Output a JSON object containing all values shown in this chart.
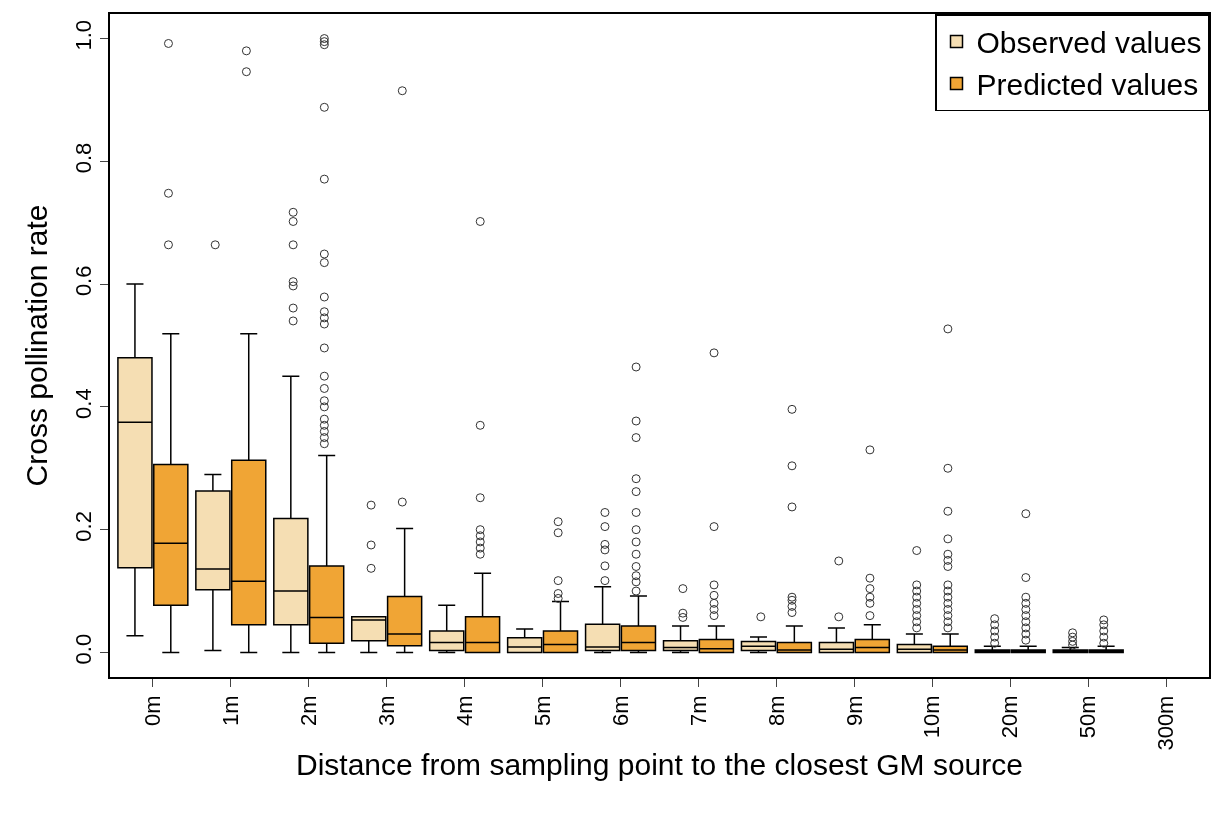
{
  "chart_data": {
    "type": "box",
    "xlabel": "Distance from sampling point to the closest GM source",
    "ylabel": "Cross pollination rate",
    "categories": [
      "0m",
      "1m",
      "2m",
      "3m",
      "4m",
      "5m",
      "6m",
      "7m",
      "8m",
      "9m",
      "10m",
      "20m",
      "50m",
      "300m"
    ],
    "ylim": [
      -0.04,
      1.04
    ],
    "yticks": [
      {
        "value": 0,
        "label": "0.0"
      },
      0.2,
      0.4,
      0.6,
      0.8,
      {
        "value": 1,
        "label": "1.0"
      }
    ],
    "legend": "top right",
    "series": [
      {
        "name": "Observed values",
        "color": "#f5deb3",
        "boxes": [
          {
            "low": 0.027,
            "q1": 0.138,
            "median": 0.375,
            "q3": 0.48,
            "high": 0.6
          },
          {
            "low": 0.003,
            "q1": 0.102,
            "median": 0.136,
            "q3": 0.263,
            "high": 0.29,
            "outliers": [
              0.664
            ]
          },
          {
            "low": 0,
            "q1": 0.045,
            "median": 0.1,
            "q3": 0.218,
            "high": 0.45,
            "outliers": [
              0.717,
              0.702,
              0.664,
              0.604,
              0.597,
              0.561,
              0.54
            ]
          },
          {
            "low": 0,
            "q1": 0.019,
            "median": 0.053,
            "q3": 0.058,
            "high": 0.058,
            "outliers": [
              0.24,
              0.175,
              0.137
            ]
          },
          {
            "low": 0,
            "q1": 0.003,
            "median": 0.016,
            "q3": 0.035,
            "high": 0.077
          },
          {
            "low": 0,
            "q1": 0,
            "median": 0.009,
            "q3": 0.024,
            "high": 0.038
          },
          {
            "low": 0,
            "q1": 0.003,
            "median": 0.009,
            "q3": 0.046,
            "high": 0.107,
            "outliers": [
              0.228,
              0.205,
              0.176,
              0.167,
              0.141,
              0.117
            ]
          },
          {
            "low": 0,
            "q1": 0.003,
            "median": 0.008,
            "q3": 0.019,
            "high": 0.043,
            "outliers": [
              0.104,
              0.064,
              0.057
            ]
          },
          {
            "low": 0,
            "q1": 0.003,
            "median": 0.01,
            "q3": 0.018,
            "high": 0.025,
            "outliers": [
              0.058
            ]
          },
          {
            "low": 0,
            "q1": 0,
            "median": 0.005,
            "q3": 0.016,
            "high": 0.04,
            "outliers": [
              0.149,
              0.058
            ]
          },
          {
            "low": 0,
            "q1": 0,
            "median": 0.005,
            "q3": 0.013,
            "high": 0.03,
            "outliers": [
              0.166,
              0.11,
              0.1,
              0.09,
              0.08,
              0.07,
              0.06,
              0.05,
              0.04
            ]
          },
          {
            "low": 0,
            "q1": 0,
            "median": 0.002,
            "q3": 0.004,
            "high": 0.01,
            "outliers": [
              0.055,
              0.045,
              0.035,
              0.025,
              0.015
            ]
          },
          {
            "low": 0,
            "q1": 0,
            "median": 0.002,
            "q3": 0.004,
            "high": 0.008,
            "outliers": [
              0.032,
              0.025,
              0.018,
              0.012
            ]
          },
          null
        ]
      },
      {
        "name": "Predicted values",
        "color": "#f0a535",
        "boxes": [
          {
            "low": 0,
            "q1": 0.077,
            "median": 0.178,
            "q3": 0.306,
            "high": 0.519,
            "outliers": [
              0.992,
              0.748,
              0.664
            ]
          },
          {
            "low": 0,
            "q1": 0.045,
            "median": 0.116,
            "q3": 0.313,
            "high": 0.519,
            "outliers": [
              0.98,
              0.946
            ]
          },
          {
            "low": 0,
            "q1": 0.015,
            "median": 0.057,
            "q3": 0.141,
            "high": 0.321,
            "outliers": [
              1.0,
              0.995,
              0.99,
              0.888,
              0.771,
              0.649,
              0.635,
              0.579,
              0.555,
              0.545,
              0.535,
              0.496,
              0.45,
              0.43,
              0.41,
              0.4,
              0.38,
              0.37,
              0.36,
              0.35,
              0.34
            ]
          },
          {
            "low": 0,
            "q1": 0.011,
            "median": 0.03,
            "q3": 0.091,
            "high": 0.202,
            "outliers": [
              0.915,
              0.245
            ]
          },
          {
            "low": 0,
            "q1": 0,
            "median": 0.016,
            "q3": 0.058,
            "high": 0.129,
            "outliers": [
              0.702,
              0.37,
              0.252,
              0.2,
              0.19,
              0.18,
              0.17,
              0.16
            ]
          },
          {
            "low": 0,
            "q1": 0,
            "median": 0.013,
            "q3": 0.035,
            "high": 0.083,
            "outliers": [
              0.213,
              0.195,
              0.117,
              0.096,
              0.088
            ]
          },
          {
            "low": 0,
            "q1": 0.003,
            "median": 0.016,
            "q3": 0.043,
            "high": 0.092,
            "outliers": [
              0.465,
              0.377,
              0.35,
              0.283,
              0.262,
              0.228,
              0.2,
              0.18,
              0.16,
              0.14,
              0.125,
              0.115,
              0.1
            ]
          },
          {
            "low": 0,
            "q1": 0,
            "median": 0.006,
            "q3": 0.021,
            "high": 0.043,
            "outliers": [
              0.488,
              0.205,
              0.11,
              0.093,
              0.08,
              0.07,
              0.06
            ]
          },
          {
            "low": 0,
            "q1": 0,
            "median": 0.004,
            "q3": 0.016,
            "high": 0.043,
            "outliers": [
              0.396,
              0.304,
              0.237,
              0.09,
              0.085,
              0.075,
              0.065
            ]
          },
          {
            "low": 0,
            "q1": 0,
            "median": 0.008,
            "q3": 0.021,
            "high": 0.045,
            "outliers": [
              0.33,
              0.121,
              0.104,
              0.09,
              0.08,
              0.06
            ]
          },
          {
            "low": 0,
            "q1": 0,
            "median": 0.004,
            "q3": 0.01,
            "high": 0.03,
            "outliers": [
              0.527,
              0.3,
              0.23,
              0.185,
              0.16,
              0.15,
              0.14,
              0.11,
              0.1,
              0.09,
              0.08,
              0.07,
              0.06,
              0.05,
              0.04
            ]
          },
          {
            "low": 0,
            "q1": 0,
            "median": 0.002,
            "q3": 0.004,
            "high": 0.01,
            "outliers": [
              0.226,
              0.122,
              0.09,
              0.08,
              0.07,
              0.06,
              0.05,
              0.04,
              0.03,
              0.02
            ]
          },
          {
            "low": 0,
            "q1": 0,
            "median": 0.002,
            "q3": 0.004,
            "high": 0.01,
            "outliers": [
              0.053,
              0.045,
              0.035,
              0.025,
              0.015
            ]
          },
          null
        ]
      }
    ]
  }
}
